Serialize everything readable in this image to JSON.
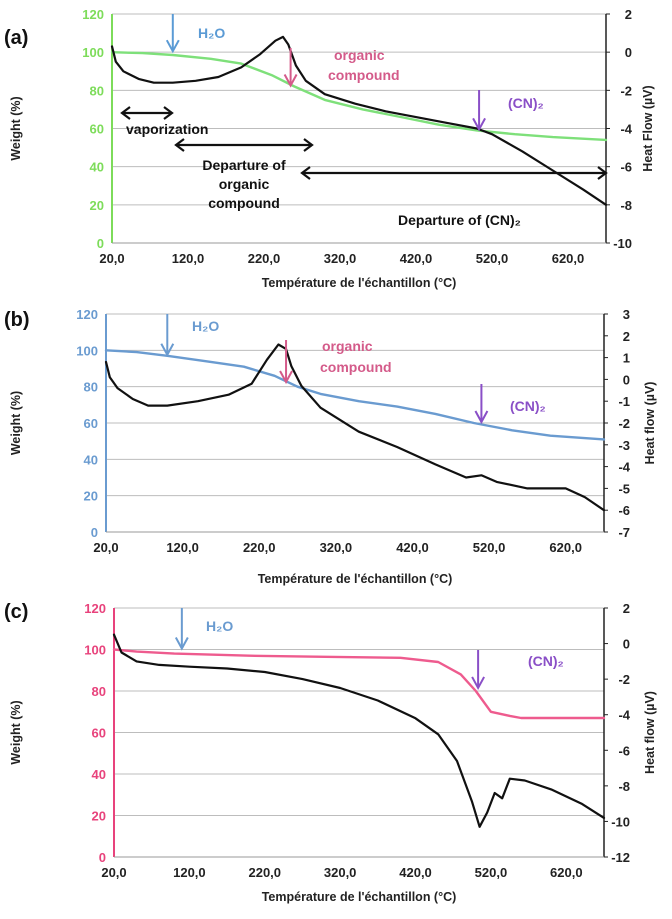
{
  "chart_data": [
    {
      "panel": "(a)",
      "type": "line",
      "xlabel": "Température de l'échantillon (°C)",
      "ylabel": "Weight (%)",
      "y2label": "Heat Flow (µV)",
      "xlim": [
        20,
        670
      ],
      "ylim": [
        0,
        120
      ],
      "y2lim": [
        -10,
        2
      ],
      "xticks": [
        "20,0",
        "120,0",
        "220,0",
        "320,0",
        "420,0",
        "520,0",
        "620,0"
      ],
      "yticks": [
        "0",
        "20",
        "40",
        "60",
        "80",
        "100",
        "120"
      ],
      "y2ticks": [
        "-10",
        "-8",
        "-6",
        "-4",
        "-2",
        "0",
        "2"
      ],
      "left_axis_color": "#7ddc5a",
      "grid": true,
      "series": [
        {
          "axis": "left",
          "color": "#7ee07a",
          "x": [
            20,
            60,
            100,
            150,
            190,
            230,
            260,
            300,
            350,
            400,
            450,
            500,
            550,
            600,
            670
          ],
          "y": [
            100,
            99.5,
            98.5,
            96.5,
            94,
            88,
            82,
            75,
            70,
            66,
            62,
            59,
            57,
            55.5,
            54
          ]
        },
        {
          "axis": "right",
          "color": "#111111",
          "x": [
            20,
            25,
            35,
            55,
            75,
            100,
            130,
            160,
            190,
            215,
            235,
            245,
            252,
            262,
            275,
            300,
            340,
            380,
            420,
            460,
            500,
            520,
            560,
            600,
            640,
            670
          ],
          "y": [
            0.3,
            -0.5,
            -1.0,
            -1.4,
            -1.6,
            -1.6,
            -1.5,
            -1.3,
            -0.8,
            -0.1,
            0.6,
            0.8,
            0.4,
            -0.7,
            -1.5,
            -2.2,
            -2.7,
            -3.1,
            -3.4,
            -3.7,
            -4.0,
            -4.3,
            -5.2,
            -6.2,
            -7.2,
            -8.0
          ]
        }
      ],
      "annotations": [
        {
          "text": "H₂O",
          "color": "#5b9bd5",
          "arrow_x": 100,
          "arrow_y": 100
        },
        {
          "text": "organic",
          "color": "#d45b8a"
        },
        {
          "text": "compound",
          "color": "#d45b8a",
          "arrow_x": 255,
          "arrow_y": 82
        },
        {
          "text": "(CN)₂",
          "color": "#8a4fc7",
          "arrow_x": 503,
          "arrow_y": 59
        },
        {
          "text": "vaporization",
          "color": "#111111",
          "range": [
            20,
            100
          ]
        },
        {
          "text": "Departure of",
          "color": "#111111"
        },
        {
          "text": "organic",
          "color": "#111111"
        },
        {
          "text": "compound",
          "color": "#111111",
          "range": [
            100,
            280
          ]
        },
        {
          "text": "Departure of (CN)₂",
          "color": "#111111",
          "range": [
            270,
            670
          ]
        }
      ]
    },
    {
      "panel": "(b)",
      "type": "line",
      "xlabel": "Température de l'échantillon (°C)",
      "ylabel": "Weight (%)",
      "y2label": "Heat flow (µV)",
      "xlim": [
        20,
        670
      ],
      "ylim": [
        0,
        120
      ],
      "y2lim": [
        -7,
        3
      ],
      "xticks": [
        "20,0",
        "120,0",
        "220,0",
        "320,0",
        "420,0",
        "520,0",
        "620,0"
      ],
      "yticks": [
        "0",
        "20",
        "40",
        "60",
        "80",
        "100",
        "120"
      ],
      "y2ticks": [
        "-7",
        "-6",
        "-5",
        "-4",
        "-3",
        "-2",
        "-1",
        "0",
        "1",
        "2",
        "3"
      ],
      "left_axis_color": "#6a9bd0",
      "grid": true,
      "series": [
        {
          "axis": "left",
          "color": "#6a9bd0",
          "x": [
            20,
            60,
            100,
            150,
            200,
            240,
            270,
            300,
            350,
            400,
            450,
            500,
            550,
            600,
            670
          ],
          "y": [
            100,
            99,
            97,
            94,
            91,
            86,
            80,
            76,
            72,
            69,
            65,
            60,
            56,
            53,
            51
          ]
        },
        {
          "axis": "right",
          "color": "#111111",
          "x": [
            20,
            25,
            35,
            55,
            75,
            100,
            140,
            180,
            210,
            230,
            245,
            255,
            262,
            275,
            300,
            350,
            400,
            450,
            490,
            510,
            530,
            570,
            620,
            645,
            670
          ],
          "y": [
            0.8,
            0.1,
            -0.4,
            -0.9,
            -1.2,
            -1.2,
            -1.0,
            -0.7,
            -0.2,
            0.9,
            1.6,
            1.4,
            0.6,
            -0.3,
            -1.3,
            -2.4,
            -3.1,
            -3.9,
            -4.5,
            -4.4,
            -4.7,
            -5.0,
            -5.0,
            -5.4,
            -6.0
          ]
        }
      ],
      "annotations": [
        {
          "text": "H₂O",
          "color": "#6a9bd0",
          "arrow_x": 100,
          "arrow_y": 97
        },
        {
          "text": "organic",
          "color": "#d45b8a"
        },
        {
          "text": "compound",
          "color": "#d45b8a",
          "arrow_x": 255,
          "arrow_y": 82
        },
        {
          "text": "(CN)₂",
          "color": "#8a4fc7",
          "arrow_x": 510,
          "arrow_y": 60
        }
      ]
    },
    {
      "panel": "(c)",
      "type": "line",
      "xlabel": "Température de l'échantillon (°C)",
      "ylabel": "Weight (%)",
      "y2label": "Heat flow (µV)",
      "xlim": [
        20,
        670
      ],
      "ylim": [
        0,
        120
      ],
      "y2lim": [
        -12,
        2
      ],
      "xticks": [
        "20,0",
        "120,0",
        "220,0",
        "320,0",
        "420,0",
        "520,0",
        "620,0"
      ],
      "yticks": [
        "0",
        "20",
        "40",
        "60",
        "80",
        "100",
        "120"
      ],
      "y2ticks": [
        "-12",
        "-10",
        "-8",
        "-6",
        "-4",
        "-2",
        "0",
        "2"
      ],
      "left_axis_color": "#e8437c",
      "grid": true,
      "series": [
        {
          "axis": "left",
          "color": "#ee5b8e",
          "x": [
            20,
            50,
            100,
            200,
            300,
            400,
            450,
            480,
            500,
            520,
            545,
            560,
            600,
            670
          ],
          "y": [
            100,
            99,
            98,
            97,
            96.5,
            96,
            94,
            88,
            80,
            70,
            68,
            67,
            67,
            67
          ]
        },
        {
          "axis": "right",
          "color": "#111111",
          "x": [
            20,
            30,
            50,
            80,
            120,
            170,
            220,
            270,
            320,
            370,
            420,
            450,
            475,
            495,
            505,
            515,
            525,
            535,
            545,
            565,
            600,
            640,
            670
          ],
          "y": [
            0.5,
            -0.5,
            -1.0,
            -1.2,
            -1.3,
            -1.4,
            -1.6,
            -2.0,
            -2.5,
            -3.2,
            -4.2,
            -5.1,
            -6.6,
            -8.9,
            -10.3,
            -9.5,
            -8.4,
            -8.7,
            -7.6,
            -7.7,
            -8.2,
            -9.0,
            -9.8
          ]
        }
      ],
      "annotations": [
        {
          "text": "H₂O",
          "color": "#6a9bd0",
          "arrow_x": 110,
          "arrow_y": 100
        },
        {
          "text": "(CN)₂",
          "color": "#8a4fc7",
          "arrow_x": 503,
          "arrow_y": 81
        }
      ]
    }
  ]
}
